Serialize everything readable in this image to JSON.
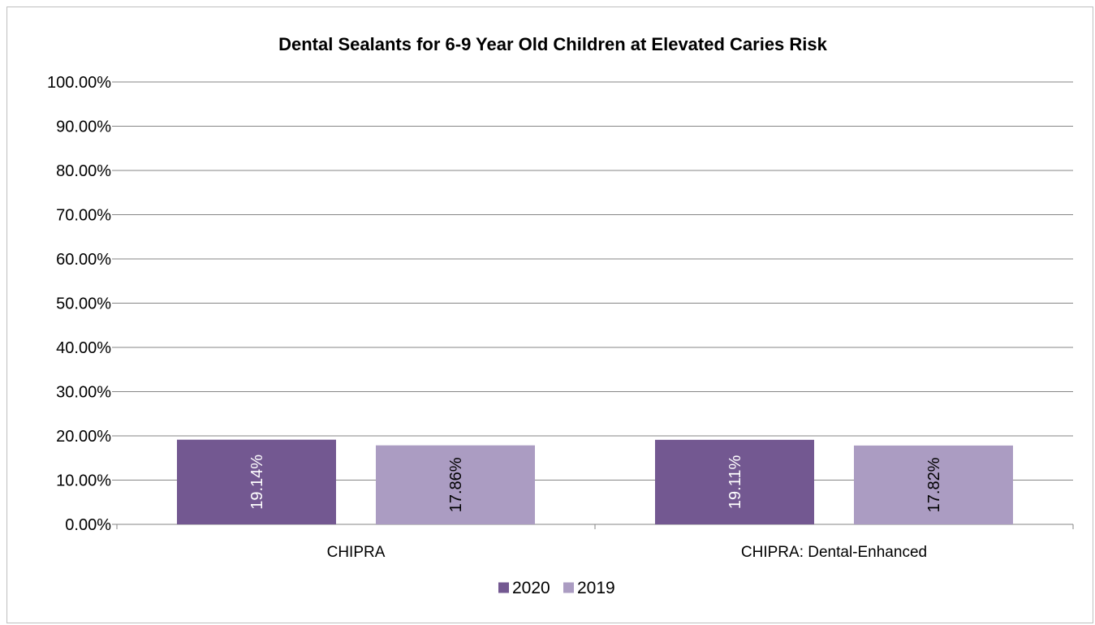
{
  "chart_data": {
    "type": "bar",
    "title": "Dental Sealants for 6-9 Year Old Children at Elevated Caries Risk",
    "categories": [
      "CHIPRA",
      "CHIPRA: Dental-Enhanced"
    ],
    "series": [
      {
        "name": "2020",
        "values": [
          19.14,
          19.11
        ],
        "labels": [
          "19.14%",
          "19.11%"
        ],
        "color": "#735891",
        "label_color": "#ffffff"
      },
      {
        "name": "2019",
        "values": [
          17.86,
          17.82
        ],
        "labels": [
          "17.86%",
          "17.82%"
        ],
        "color": "#ab9cc2",
        "label_color": "#000000"
      }
    ],
    "ylim": [
      0,
      100
    ],
    "yticks": [
      0,
      10,
      20,
      30,
      40,
      50,
      60,
      70,
      80,
      90,
      100
    ],
    "ytick_labels": [
      "0.00%",
      "10.00%",
      "20.00%",
      "30.00%",
      "40.00%",
      "50.00%",
      "60.00%",
      "70.00%",
      "80.00%",
      "90.00%",
      "100.00%"
    ],
    "xlabel": "",
    "ylabel": "",
    "grid": true,
    "legend_position": "bottom",
    "gridline_color": "#868686"
  }
}
